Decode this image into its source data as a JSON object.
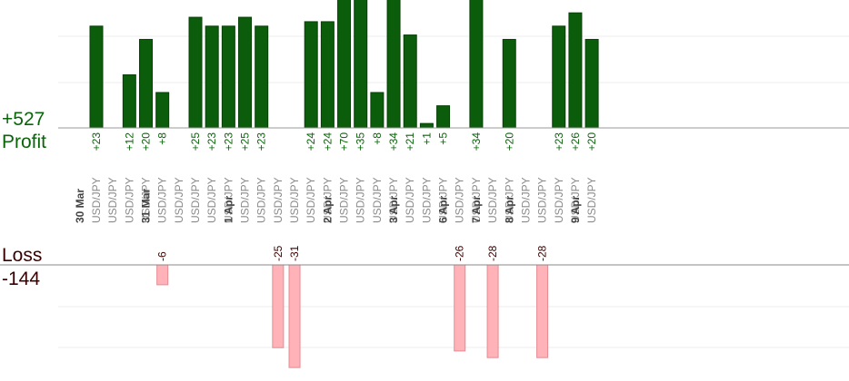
{
  "chart_data": [
    {
      "type": "bar",
      "name_label": "Profit",
      "total_label": "+527",
      "color": "#0b5d0b",
      "border": "#083f08",
      "label_color": "#0a640a",
      "ylim": [
        0,
        70
      ],
      "bars": [
        {
          "label": "+23",
          "value": 23
        },
        {
          "label": "+12",
          "value": 12
        },
        {
          "label": "+20",
          "value": 20
        },
        {
          "label": "+8",
          "value": 8
        },
        {
          "label": "+25",
          "value": 25
        },
        {
          "label": "+23",
          "value": 23
        },
        {
          "label": "+23",
          "value": 23
        },
        {
          "label": "+25",
          "value": 25
        },
        {
          "label": "+23",
          "value": 23
        },
        {
          "label": "+24",
          "value": 24
        },
        {
          "label": "+24",
          "value": 24
        },
        {
          "label": "+70",
          "value": 70
        },
        {
          "label": "+35",
          "value": 35
        },
        {
          "label": "+8",
          "value": 8
        },
        {
          "label": "+34",
          "value": 34
        },
        {
          "label": "+21",
          "value": 21
        },
        {
          "label": "+1",
          "value": 1
        },
        {
          "label": "+5",
          "value": 5
        },
        {
          "label": "+34",
          "value": 34
        },
        {
          "label": "+20",
          "value": 20
        },
        {
          "label": "+23",
          "value": 23
        },
        {
          "label": "+26",
          "value": 26
        },
        {
          "label": "+20",
          "value": 20
        }
      ]
    },
    {
      "type": "bar",
      "name_label": "Loss",
      "total_label": "-144",
      "color": "#ffb3b8",
      "border": "#e58a92",
      "label_color": "#3a0000",
      "ylim": [
        -31,
        0
      ],
      "bars": [
        {
          "label": "-6",
          "value": -6
        },
        {
          "label": "-25",
          "value": -25
        },
        {
          "label": "-31",
          "value": -31
        },
        {
          "label": "-26",
          "value": -26
        },
        {
          "label": "-28",
          "value": -28
        },
        {
          "label": "-28",
          "value": -28
        }
      ]
    }
  ],
  "x_axis": {
    "symbol": "USD/JPY",
    "dates": [
      "30 Mar",
      "31 Mar",
      "1 Apr",
      "2 Apr",
      "3 Apr",
      "6 Apr",
      "7 Apr",
      "8 Apr",
      "9 Apr"
    ],
    "slots": [
      {
        "date": 0,
        "profit": 0
      },
      {
        "date": 0
      },
      {
        "date": 0,
        "profit": 1
      },
      {
        "date": 0,
        "profit": 2
      },
      {
        "date": 1,
        "profit": 3,
        "loss": 0
      },
      {
        "date": 1
      },
      {
        "date": 1,
        "profit": 4
      },
      {
        "date": 1,
        "profit": 5
      },
      {
        "date": 1,
        "profit": 6
      },
      {
        "date": 2,
        "profit": 7
      },
      {
        "date": 2,
        "profit": 8
      },
      {
        "date": 2,
        "loss": 1
      },
      {
        "date": 2,
        "loss": 2
      },
      {
        "date": 2,
        "profit": 9
      },
      {
        "date": 2,
        "profit": 10
      },
      {
        "date": 3,
        "profit": 11
      },
      {
        "date": 3,
        "profit": 12
      },
      {
        "date": 3,
        "profit": 13
      },
      {
        "date": 3,
        "profit": 14
      },
      {
        "date": 4,
        "profit": 15
      },
      {
        "date": 4,
        "profit": 16
      },
      {
        "date": 4,
        "profit": 17
      },
      {
        "date": 5,
        "loss": 3
      },
      {
        "date": 5,
        "profit": 18
      },
      {
        "date": 6,
        "loss": 4
      },
      {
        "date": 6,
        "profit": 19
      },
      {
        "date": 7
      },
      {
        "date": 7,
        "loss": 5
      },
      {
        "date": 7,
        "profit": 20
      },
      {
        "date": 7,
        "profit": 21
      },
      {
        "date": 8,
        "profit": 22
      }
    ]
  }
}
